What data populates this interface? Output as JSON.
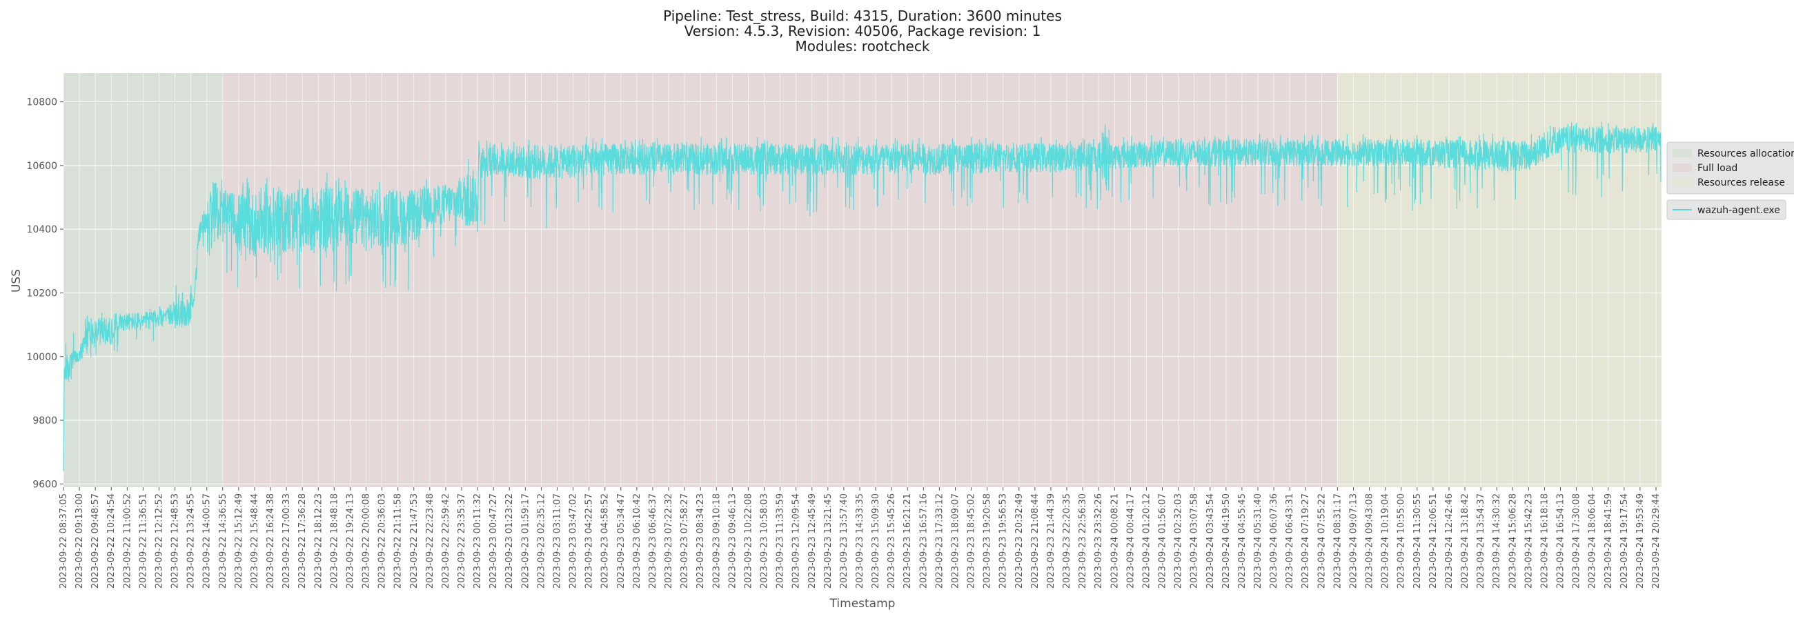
{
  "chart_data": {
    "type": "line",
    "title_lines": [
      "Pipeline: Test_stress, Build: 4315, Duration: 3600 minutes",
      "Version: 4.5.3, Revision: 40506, Package revision: 1",
      "Modules: rootcheck"
    ],
    "xlabel": "Timestamp",
    "ylabel": "USS",
    "ylim": [
      9590,
      10890
    ],
    "yticks": [
      9600,
      9800,
      10000,
      10200,
      10400,
      10600,
      10800
    ],
    "grid": true,
    "legend_placement": "right",
    "background_color": "#e5e5e5",
    "x_tick_labels": [
      "2023-09-22 08:37:05",
      "2023-09-22 09:13:00",
      "2023-09-22 09:48:57",
      "2023-09-22 10:24:54",
      "2023-09-22 11:00:52",
      "2023-09-22 11:36:51",
      "2023-09-22 12:12:52",
      "2023-09-22 12:48:53",
      "2023-09-22 13:24:55",
      "2023-09-22 14:00:57",
      "2023-09-22 14:36:55",
      "2023-09-22 15:12:49",
      "2023-09-22 15:48:44",
      "2023-09-22 16:24:38",
      "2023-09-22 17:00:33",
      "2023-09-22 17:36:28",
      "2023-09-22 18:12:23",
      "2023-09-22 18:48:18",
      "2023-09-22 19:24:13",
      "2023-09-22 20:00:08",
      "2023-09-22 20:36:03",
      "2023-09-22 21:11:58",
      "2023-09-22 21:47:53",
      "2023-09-22 22:23:48",
      "2023-09-22 22:59:42",
      "2023-09-22 23:35:37",
      "2023-09-23 00:11:32",
      "2023-09-23 00:47:27",
      "2023-09-23 01:23:22",
      "2023-09-23 01:59:17",
      "2023-09-23 02:35:12",
      "2023-09-23 03:11:07",
      "2023-09-23 03:47:02",
      "2023-09-23 04:22:57",
      "2023-09-23 04:58:52",
      "2023-09-23 05:34:47",
      "2023-09-23 06:10:42",
      "2023-09-23 06:46:37",
      "2023-09-23 07:22:32",
      "2023-09-23 07:58:27",
      "2023-09-23 08:34:23",
      "2023-09-23 09:10:18",
      "2023-09-23 09:46:13",
      "2023-09-23 10:22:08",
      "2023-09-23 10:58:03",
      "2023-09-23 11:33:59",
      "2023-09-23 12:09:54",
      "2023-09-23 12:45:49",
      "2023-09-23 13:21:45",
      "2023-09-23 13:57:40",
      "2023-09-23 14:33:35",
      "2023-09-23 15:09:30",
      "2023-09-23 15:45:26",
      "2023-09-23 16:21:21",
      "2023-09-23 16:57:16",
      "2023-09-23 17:33:12",
      "2023-09-23 18:09:07",
      "2023-09-23 18:45:02",
      "2023-09-23 19:20:58",
      "2023-09-23 19:56:53",
      "2023-09-23 20:32:49",
      "2023-09-23 21:08:44",
      "2023-09-23 21:44:39",
      "2023-09-23 22:20:35",
      "2023-09-23 22:56:30",
      "2023-09-23 23:32:26",
      "2023-09-24 00:08:21",
      "2023-09-24 00:44:17",
      "2023-09-24 01:20:12",
      "2023-09-24 01:56:07",
      "2023-09-24 02:32:03",
      "2023-09-24 03:07:58",
      "2023-09-24 03:43:54",
      "2023-09-24 04:19:50",
      "2023-09-24 04:55:45",
      "2023-09-24 05:31:40",
      "2023-09-24 06:07:36",
      "2023-09-24 06:43:31",
      "2023-09-24 07:19:27",
      "2023-09-24 07:55:22",
      "2023-09-24 08:31:17",
      "2023-09-24 09:07:13",
      "2023-09-24 09:43:08",
      "2023-09-24 10:19:04",
      "2023-09-24 10:55:00",
      "2023-09-24 11:30:55",
      "2023-09-24 12:06:51",
      "2023-09-24 12:42:46",
      "2023-09-24 13:18:42",
      "2023-09-24 13:54:37",
      "2023-09-24 14:30:32",
      "2023-09-24 15:06:28",
      "2023-09-24 15:42:23",
      "2023-09-24 16:18:18",
      "2023-09-24 16:54:13",
      "2023-09-24 17:30:08",
      "2023-09-24 18:06:04",
      "2023-09-24 18:41:59",
      "2023-09-24 19:17:54",
      "2023-09-24 19:53:49",
      "2023-09-24 20:29:44"
    ],
    "phases": [
      {
        "name": "Resources allocation",
        "start_tick": 0,
        "end_tick": 10,
        "color": "#d8e0d8"
      },
      {
        "name": "Full load",
        "start_tick": 10,
        "end_tick": 80,
        "color": "#e5d8d8"
      },
      {
        "name": "Resources release",
        "start_tick": 80,
        "end_tick": 100.3,
        "color": "#e5e5d5"
      }
    ],
    "series": [
      {
        "name": "wazuh-agent.exe",
        "color": "#5bdcdc",
        "x_ticks": [
          0,
          0.05,
          0.1,
          0.3,
          0.6,
          1.0,
          1.5,
          1.6,
          2.0,
          3.0,
          3.3,
          4.0,
          5.0,
          6.0,
          6.2,
          6.5,
          7.0,
          8.0,
          8.2,
          8.5,
          8.7,
          9.0,
          9.4,
          10.0,
          10.6,
          11.0,
          13.0,
          16.0,
          18.0,
          19.0,
          22.0,
          23.0,
          25.0,
          26.0,
          26.1,
          26.2,
          27.0,
          30.0,
          35.0,
          40.0,
          45.0,
          50.0,
          55.0,
          60.0,
          65.0,
          65.6,
          65.7,
          66.0,
          70.0,
          75.0,
          80.0,
          85.0,
          90.0,
          92.0,
          93.6,
          95.0,
          100.0,
          100.3
        ],
        "y_center": [
          9640,
          9930,
          9960,
          9960,
          9990,
          10000,
          10060,
          10080,
          10080,
          10080,
          10110,
          10110,
          10110,
          10120,
          10130,
          10130,
          10130,
          10140,
          10180,
          10380,
          10410,
          10440,
          10460,
          10440,
          10460,
          10410,
          10420,
          10430,
          10440,
          10430,
          10440,
          10470,
          10490,
          10500,
          10620,
          10610,
          10615,
          10610,
          10620,
          10620,
          10620,
          10620,
          10620,
          10625,
          10625,
          10630,
          10630,
          10630,
          10640,
          10640,
          10640,
          10640,
          10630,
          10630,
          10680,
          10680,
          10680,
          10680
        ],
        "y_low": [
          9610,
          9880,
          9900,
          9890,
          9950,
          9970,
          9990,
          9990,
          10000,
          10010,
          10010,
          10030,
          10030,
          10050,
          10080,
          10180,
          10190,
          10200,
          10200,
          10230,
          10290,
          10290,
          10290,
          10230,
          10230,
          10210,
          10230,
          10190,
          10190,
          10190,
          10190,
          10210,
          10370,
          10370,
          10400,
          10400,
          10400,
          10400,
          10420,
          10450,
          10450,
          10420,
          10470,
          10460,
          10460,
          10470,
          10470,
          10480,
          10470,
          10470,
          10470,
          10450,
          10450,
          10450,
          10480,
          10490,
          10500,
          10500
        ],
        "y_high": [
          9700,
          10080,
          10100,
          10080,
          10110,
          10120,
          10130,
          10140,
          10140,
          10140,
          10150,
          10150,
          10150,
          10160,
          10220,
          10250,
          10240,
          10240,
          10250,
          10420,
          10460,
          10510,
          10600,
          10560,
          10540,
          10560,
          10560,
          10580,
          10570,
          10570,
          10560,
          10560,
          10580,
          10780,
          10680,
          10680,
          10680,
          10690,
          10690,
          10690,
          10690,
          10690,
          10690,
          10690,
          10690,
          10830,
          10690,
          10690,
          10700,
          10700,
          10700,
          10700,
          10700,
          10700,
          10745,
          10740,
          10740,
          10740
        ]
      }
    ]
  }
}
